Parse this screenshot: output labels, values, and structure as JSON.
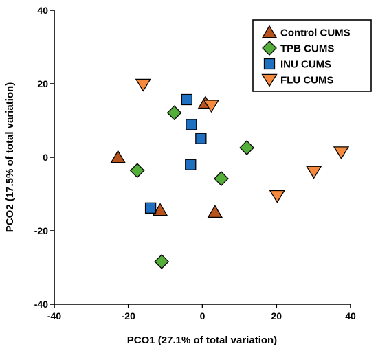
{
  "chart_data": {
    "type": "scatter",
    "title": "",
    "xlabel": "PCO1 (27.1% of total variation)",
    "ylabel": "PCO2 (17.5% of total variation)",
    "xlim": [
      -40,
      40
    ],
    "ylim": [
      -40,
      40
    ],
    "xticks": [
      -40,
      -20,
      0,
      20,
      40
    ],
    "yticks": [
      -40,
      -20,
      0,
      20,
      40
    ],
    "grid": false,
    "legend_position": "top-right",
    "series": [
      {
        "name": "Control CUMS",
        "marker": "triangle-up",
        "color": "#b8531b",
        "points": [
          [
            -22.8,
            0.0
          ],
          [
            -11.4,
            -14.4
          ],
          [
            0.8,
            14.8
          ],
          [
            3.4,
            -14.9
          ]
        ]
      },
      {
        "name": "TPB CUMS",
        "marker": "diamond",
        "color": "#54ae3a",
        "points": [
          [
            -7.6,
            12.1
          ],
          [
            -17.6,
            -3.6
          ],
          [
            -11.0,
            -28.4
          ],
          [
            5.1,
            -5.8
          ],
          [
            12.0,
            2.6
          ]
        ]
      },
      {
        "name": "INU CUMS",
        "marker": "square",
        "color": "#1f70c1",
        "points": [
          [
            -4.2,
            15.7
          ],
          [
            -3.0,
            8.9
          ],
          [
            -0.4,
            5.1
          ],
          [
            -3.2,
            -2.0
          ],
          [
            -14.0,
            -13.8
          ]
        ]
      },
      {
        "name": "FLU CUMS",
        "marker": "triangle-down",
        "color": "#f58a3c",
        "points": [
          [
            -16.0,
            19.8
          ],
          [
            2.4,
            14.1
          ],
          [
            20.2,
            -10.5
          ],
          [
            30.1,
            -3.9
          ],
          [
            37.5,
            1.4
          ]
        ]
      }
    ]
  }
}
